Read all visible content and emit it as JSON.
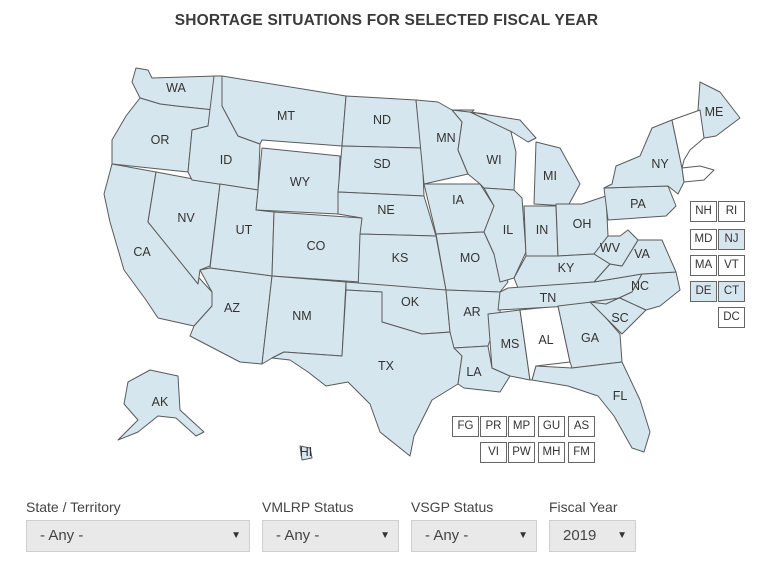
{
  "title": "SHORTAGE SITUATIONS FOR SELECTED FISCAL YEAR",
  "colors": {
    "shortage": "#d6e6ee",
    "no_shortage": "#ffffff",
    "border": "#5a5a5a"
  },
  "map_states": [
    {
      "code": "WA",
      "shortage": true
    },
    {
      "code": "OR",
      "shortage": true
    },
    {
      "code": "CA",
      "shortage": true
    },
    {
      "code": "NV",
      "shortage": true
    },
    {
      "code": "ID",
      "shortage": true
    },
    {
      "code": "MT",
      "shortage": true
    },
    {
      "code": "WY",
      "shortage": true
    },
    {
      "code": "UT",
      "shortage": true
    },
    {
      "code": "AZ",
      "shortage": true
    },
    {
      "code": "CO",
      "shortage": true
    },
    {
      "code": "NM",
      "shortage": true
    },
    {
      "code": "ND",
      "shortage": true
    },
    {
      "code": "SD",
      "shortage": true
    },
    {
      "code": "NE",
      "shortage": true
    },
    {
      "code": "KS",
      "shortage": true
    },
    {
      "code": "OK",
      "shortage": true
    },
    {
      "code": "TX",
      "shortage": true
    },
    {
      "code": "MN",
      "shortage": true
    },
    {
      "code": "IA",
      "shortage": true
    },
    {
      "code": "MO",
      "shortage": true
    },
    {
      "code": "AR",
      "shortage": true
    },
    {
      "code": "LA",
      "shortage": true
    },
    {
      "code": "WI",
      "shortage": true
    },
    {
      "code": "IL",
      "shortage": true
    },
    {
      "code": "MS",
      "shortage": true
    },
    {
      "code": "AL",
      "shortage": false
    },
    {
      "code": "MI",
      "shortage": true
    },
    {
      "code": "IN",
      "shortage": true
    },
    {
      "code": "OH",
      "shortage": true
    },
    {
      "code": "KY",
      "shortage": true
    },
    {
      "code": "TN",
      "shortage": true
    },
    {
      "code": "GA",
      "shortage": true
    },
    {
      "code": "FL",
      "shortage": true
    },
    {
      "code": "SC",
      "shortage": true
    },
    {
      "code": "NC",
      "shortage": true
    },
    {
      "code": "VA",
      "shortage": true
    },
    {
      "code": "WV",
      "shortage": true
    },
    {
      "code": "PA",
      "shortage": true
    },
    {
      "code": "NY",
      "shortage": true
    },
    {
      "code": "ME",
      "shortage": true
    },
    {
      "code": "AK",
      "shortage": true
    },
    {
      "code": "HI",
      "shortage": true
    }
  ],
  "small_states": [
    {
      "code": "NH",
      "shortage": false
    },
    {
      "code": "RI",
      "shortage": false
    },
    {
      "code": "MD",
      "shortage": false
    },
    {
      "code": "NJ",
      "shortage": true
    },
    {
      "code": "MA",
      "shortage": false
    },
    {
      "code": "VT",
      "shortage": false
    },
    {
      "code": "DE",
      "shortage": true
    },
    {
      "code": "CT",
      "shortage": true
    },
    {
      "code": "DC",
      "shortage": false
    }
  ],
  "territories_row1": [
    {
      "code": "FG",
      "shortage": false
    },
    {
      "code": "PR",
      "shortage": false
    },
    {
      "code": "MP",
      "shortage": false
    },
    {
      "code": "GU",
      "shortage": false
    },
    {
      "code": "AS",
      "shortage": false
    }
  ],
  "territories_row2": [
    {
      "code": "VI",
      "shortage": false
    },
    {
      "code": "PW",
      "shortage": false
    },
    {
      "code": "MH",
      "shortage": false
    },
    {
      "code": "FM",
      "shortage": false
    }
  ],
  "filters": [
    {
      "label": "State / Territory",
      "value": "- Any -"
    },
    {
      "label": "VMLRP Status",
      "value": "- Any -"
    },
    {
      "label": "VSGP Status",
      "value": "- Any -"
    },
    {
      "label": "Fiscal Year",
      "value": "2019"
    }
  ]
}
